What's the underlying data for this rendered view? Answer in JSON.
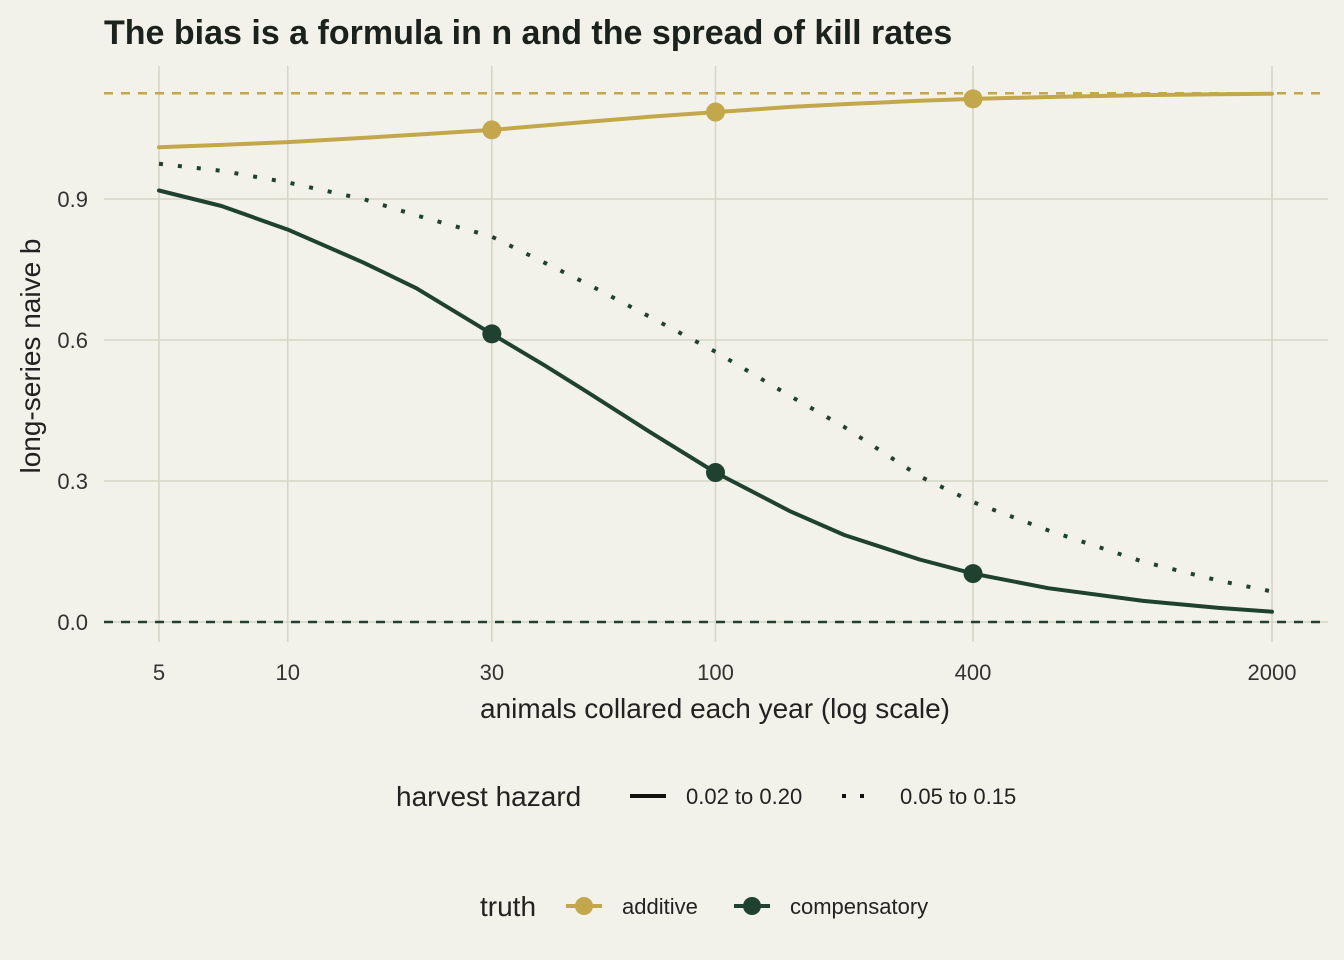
{
  "chart_data": {
    "type": "line",
    "title": "The bias is a formula in n and the spread of kill rates",
    "xlabel": "animals collared each year (log scale)",
    "ylabel": "long-series naive b",
    "x_scale": "log",
    "xlim": [
      5,
      2000
    ],
    "ylim": [
      -0.03,
      1.13
    ],
    "x_ticks": [
      5,
      10,
      30,
      100,
      400,
      2000
    ],
    "x_tick_labels": [
      "5",
      "10",
      "30",
      "100",
      "400",
      "2000"
    ],
    "y_ticks": [
      0.0,
      0.3,
      0.6,
      0.9
    ],
    "y_tick_labels": [
      "0.0",
      "0.3",
      "0.6",
      "0.9"
    ],
    "grid": true,
    "reference_lines": [
      {
        "truth": "additive",
        "y": 1.125,
        "style": "dashed",
        "color": "#c2a84a"
      },
      {
        "truth": "compensatory",
        "y": 0.0,
        "style": "dashed",
        "color": "#1f4230"
      }
    ],
    "series": [
      {
        "truth": "additive",
        "hazard": "0.02 to 0.20",
        "color": "#c2a84a",
        "style": "solid",
        "x": [
          5,
          7,
          10,
          15,
          20,
          30,
          50,
          70,
          100,
          150,
          200,
          300,
          400,
          600,
          1000,
          1500,
          2000
        ],
        "y": [
          1.01,
          1.015,
          1.021,
          1.03,
          1.037,
          1.047,
          1.064,
          1.075,
          1.085,
          1.096,
          1.102,
          1.109,
          1.113,
          1.117,
          1.121,
          1.123,
          1.124
        ]
      },
      {
        "truth": "compensatory",
        "hazard": "0.02 to 0.20",
        "color": "#1f4230",
        "style": "solid",
        "x": [
          5,
          7,
          10,
          15,
          20,
          30,
          40,
          50,
          70,
          100,
          150,
          200,
          300,
          400,
          600,
          1000,
          1500,
          2000
        ],
        "y": [
          0.918,
          0.885,
          0.835,
          0.765,
          0.71,
          0.613,
          0.545,
          0.49,
          0.405,
          0.318,
          0.235,
          0.185,
          0.133,
          0.103,
          0.072,
          0.045,
          0.03,
          0.022
        ]
      },
      {
        "truth": "compensatory",
        "hazard": "0.05 to 0.15",
        "color": "#1f4230",
        "style": "dotted",
        "x": [
          5,
          7,
          10,
          15,
          20,
          30,
          50,
          70,
          100,
          150,
          200,
          300,
          400,
          600,
          1000,
          1500,
          2000
        ],
        "y": [
          0.975,
          0.96,
          0.935,
          0.9,
          0.865,
          0.82,
          0.72,
          0.65,
          0.575,
          0.48,
          0.415,
          0.31,
          0.255,
          0.195,
          0.128,
          0.088,
          0.065
        ]
      }
    ],
    "points": [
      {
        "truth": "additive",
        "x": [
          30,
          100,
          400
        ],
        "y": [
          1.047,
          1.085,
          1.113
        ]
      },
      {
        "truth": "compensatory",
        "x": [
          30,
          100,
          400
        ],
        "y": [
          0.613,
          0.318,
          0.103
        ]
      }
    ],
    "legend": {
      "placement": "bottom",
      "hazard": {
        "title": "harvest hazard",
        "entries": [
          {
            "label": "0.02 to 0.20",
            "style": "solid"
          },
          {
            "label": "0.05 to 0.15",
            "style": "dotted"
          }
        ]
      },
      "truth": {
        "title": "truth",
        "entries": [
          {
            "label": "additive",
            "color": "#c2a84a"
          },
          {
            "label": "compensatory",
            "color": "#1f4230"
          }
        ]
      }
    }
  }
}
